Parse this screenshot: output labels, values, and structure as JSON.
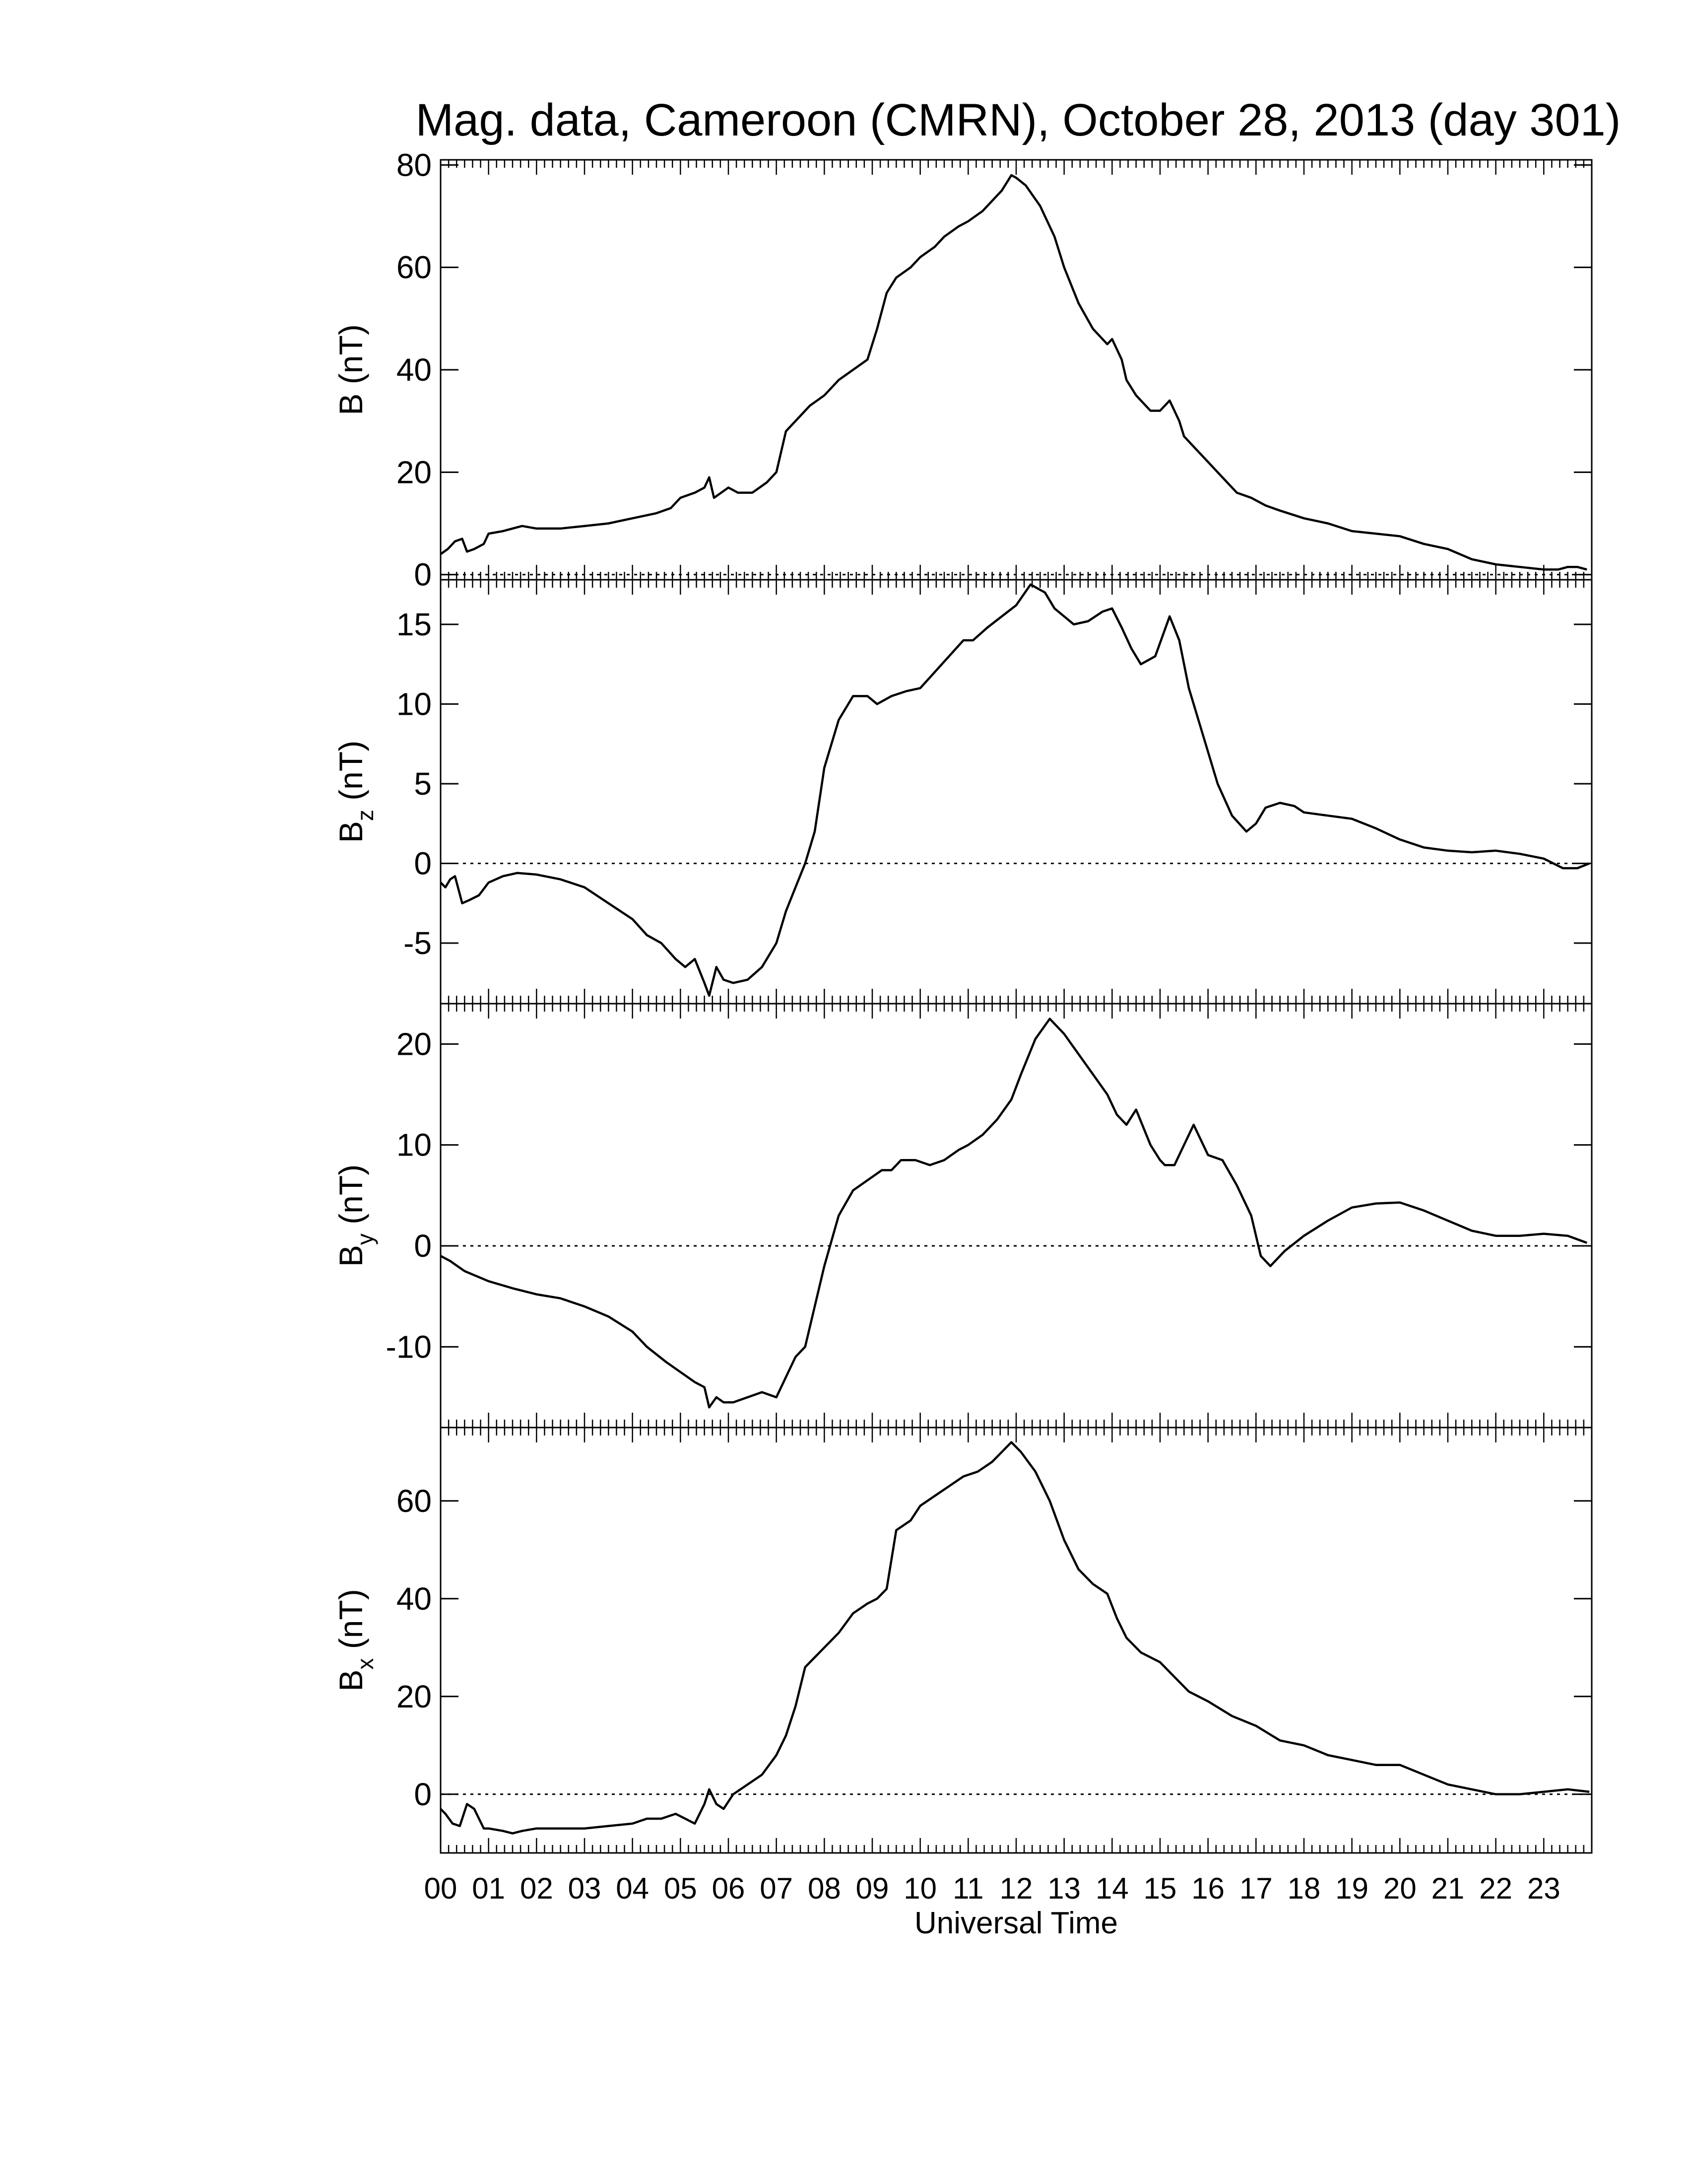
{
  "title": "Mag. data, Cameroon (CMRN), October 28, 2013 (day 301)",
  "xlabel": "Universal Time",
  "x_tick_labels": [
    "00",
    "01",
    "02",
    "03",
    "04",
    "05",
    "06",
    "07",
    "08",
    "09",
    "10",
    "11",
    "12",
    "13",
    "14",
    "15",
    "16",
    "17",
    "18",
    "19",
    "20",
    "21",
    "22",
    "23"
  ],
  "chart_data": [
    {
      "type": "line",
      "panel": "B",
      "ylabel": "B (nT)",
      "ylabel_main": "B",
      "ylabel_sub": "",
      "ylabel_unit": " (nT)",
      "ylim": [
        -1,
        81
      ],
      "yticks": [
        0,
        20,
        40,
        60,
        80
      ],
      "xlim": [
        0,
        24
      ],
      "zero_line": true,
      "series": [
        {
          "x": [
            0,
            0.15,
            0.3,
            0.45,
            0.55,
            0.7,
            0.9,
            1.0,
            1.3,
            1.5,
            1.7,
            2.0,
            2.5,
            3.0,
            3.5,
            4.0,
            4.5,
            4.8,
            5.0,
            5.3,
            5.5,
            5.6,
            5.7,
            6.0,
            6.2,
            6.5,
            6.8,
            7.0,
            7.2,
            7.4,
            7.7,
            8.0,
            8.3,
            8.6,
            8.9,
            9.1,
            9.3,
            9.5,
            9.8,
            10.0,
            10.3,
            10.5,
            10.8,
            11.0,
            11.3,
            11.5,
            11.7,
            11.9,
            12.0,
            12.2,
            12.5,
            12.8,
            13.0,
            13.3,
            13.6,
            13.9,
            14.0,
            14.2,
            14.3,
            14.5,
            14.8,
            15.0,
            15.2,
            15.4,
            15.5,
            15.7,
            16.0,
            16.3,
            16.6,
            16.9,
            17.2,
            17.5,
            18.0,
            18.5,
            19.0,
            19.5,
            20.0,
            20.5,
            21.0,
            21.5,
            22.0,
            22.5,
            23.0,
            23.3,
            23.5,
            23.7,
            23.9
          ],
          "y": [
            4,
            5,
            6.5,
            7,
            4.5,
            5,
            6,
            8,
            8.5,
            9,
            9.5,
            9,
            9,
            9.5,
            10,
            11,
            12,
            13,
            15,
            16,
            17,
            19,
            15,
            17,
            16,
            16,
            18,
            20,
            28,
            30,
            33,
            35,
            38,
            40,
            42,
            48,
            55,
            58,
            60,
            62,
            64,
            66,
            68,
            69,
            71,
            73,
            75,
            78,
            77.5,
            76,
            72,
            66,
            60,
            53,
            48,
            45,
            46,
            42,
            38,
            35,
            32,
            32,
            34,
            30,
            27,
            25,
            22,
            19,
            16,
            15,
            13.5,
            12.5,
            11,
            10,
            8.5,
            8,
            7.5,
            6,
            5,
            3,
            2,
            1.5,
            1,
            1,
            1.5,
            1.5,
            1
          ]
        }
      ]
    },
    {
      "type": "line",
      "panel": "Bz",
      "ylabel": "Bz (nT)",
      "ylabel_main": "B",
      "ylabel_sub": "z",
      "ylabel_unit": " (nT)",
      "ylim": [
        -8.8,
        17.8
      ],
      "yticks": [
        -5,
        0,
        5,
        10,
        15
      ],
      "xlim": [
        0,
        24
      ],
      "zero_line": true,
      "series": [
        {
          "x": [
            0,
            0.1,
            0.2,
            0.3,
            0.45,
            0.6,
            0.8,
            1.0,
            1.3,
            1.6,
            2.0,
            2.5,
            3.0,
            3.5,
            4.0,
            4.3,
            4.6,
            4.9,
            5.1,
            5.3,
            5.5,
            5.6,
            5.75,
            5.9,
            6.1,
            6.4,
            6.7,
            7.0,
            7.2,
            7.4,
            7.6,
            7.8,
            8.0,
            8.3,
            8.6,
            8.9,
            9.1,
            9.4,
            9.7,
            10.0,
            10.3,
            10.6,
            10.9,
            11.1,
            11.4,
            11.7,
            12.0,
            12.3,
            12.6,
            12.8,
            13.0,
            13.2,
            13.5,
            13.8,
            14.0,
            14.2,
            14.4,
            14.6,
            14.9,
            15.2,
            15.4,
            15.6,
            15.9,
            16.2,
            16.5,
            16.8,
            17.0,
            17.2,
            17.5,
            17.8,
            18.0,
            18.5,
            19.0,
            19.5,
            20.0,
            20.5,
            21.0,
            21.5,
            22.0,
            22.5,
            23.0,
            23.4,
            23.7,
            23.95
          ],
          "y": [
            -1.2,
            -1.5,
            -1.0,
            -0.8,
            -2.5,
            -2.3,
            -2.0,
            -1.2,
            -0.8,
            -0.6,
            -0.7,
            -1.0,
            -1.5,
            -2.5,
            -3.5,
            -4.5,
            -5.0,
            -6.0,
            -6.5,
            -6.0,
            -7.5,
            -8.3,
            -6.5,
            -7.3,
            -7.5,
            -7.3,
            -6.5,
            -5.0,
            -3.0,
            -1.5,
            0,
            2,
            6,
            9,
            10.5,
            10.5,
            10,
            10.5,
            10.8,
            11,
            12,
            13,
            14,
            14,
            14.8,
            15.5,
            16.2,
            17.5,
            17,
            16,
            15.5,
            15,
            15.2,
            15.8,
            16,
            14.8,
            13.5,
            12.5,
            13,
            15.5,
            14,
            11,
            8,
            5,
            3,
            2,
            2.5,
            3.5,
            3.8,
            3.6,
            3.2,
            3.0,
            2.8,
            2.2,
            1.5,
            1.0,
            0.8,
            0.7,
            0.8,
            0.6,
            0.3,
            -0.3,
            -0.3,
            0
          ]
        }
      ]
    },
    {
      "type": "line",
      "panel": "By",
      "ylabel": "By (nT)",
      "ylabel_main": "B",
      "ylabel_sub": "y",
      "ylabel_unit": " (nT)",
      "ylim": [
        -18,
        24
      ],
      "yticks": [
        -10,
        0,
        10,
        20
      ],
      "xlim": [
        0,
        24
      ],
      "zero_line": true,
      "series": [
        {
          "x": [
            0,
            0.2,
            0.5,
            1.0,
            1.5,
            2.0,
            2.5,
            3.0,
            3.5,
            4.0,
            4.3,
            4.7,
            5.0,
            5.3,
            5.5,
            5.6,
            5.75,
            5.9,
            6.1,
            6.4,
            6.7,
            7.0,
            7.2,
            7.4,
            7.6,
            7.8,
            8.0,
            8.3,
            8.6,
            8.9,
            9.2,
            9.4,
            9.6,
            9.9,
            10.2,
            10.5,
            10.8,
            11.0,
            11.3,
            11.6,
            11.9,
            12.1,
            12.4,
            12.7,
            13.0,
            13.3,
            13.6,
            13.9,
            14.1,
            14.3,
            14.5,
            14.8,
            15.0,
            15.1,
            15.3,
            15.5,
            15.7,
            16.0,
            16.3,
            16.6,
            16.9,
            17.1,
            17.3,
            17.6,
            18.0,
            18.5,
            19.0,
            19.5,
            20.0,
            20.5,
            21.0,
            21.5,
            22.0,
            22.5,
            23.0,
            23.5,
            23.9
          ],
          "y": [
            -1,
            -1.5,
            -2.5,
            -3.5,
            -4.2,
            -4.8,
            -5.2,
            -6,
            -7,
            -8.5,
            -10,
            -11.5,
            -12.5,
            -13.5,
            -14,
            -16,
            -15,
            -15.5,
            -15.5,
            -15,
            -14.5,
            -15,
            -13,
            -11,
            -10,
            -6,
            -2,
            3,
            5.5,
            6.5,
            7.5,
            7.5,
            8.5,
            8.5,
            8,
            8.5,
            9.5,
            10,
            11,
            12.5,
            14.5,
            17,
            20.5,
            22.5,
            21,
            19,
            17,
            15,
            13,
            12,
            13.5,
            10,
            8.5,
            8,
            8,
            10,
            12,
            9,
            8.5,
            6,
            3,
            -1,
            -2,
            -0.5,
            1,
            2.5,
            3.8,
            4.2,
            4.3,
            3.5,
            2.5,
            1.5,
            1.0,
            1.0,
            1.2,
            1.0,
            0.3
          ]
        }
      ]
    },
    {
      "type": "line",
      "panel": "Bx",
      "ylabel": "Bx (nT)",
      "ylabel_main": "B",
      "ylabel_sub": "x",
      "ylabel_unit": " (nT)",
      "ylim": [
        -12,
        75
      ],
      "yticks": [
        0,
        20,
        40,
        60
      ],
      "xlim": [
        0,
        24
      ],
      "zero_line": true,
      "series": [
        {
          "x": [
            0,
            0.1,
            0.25,
            0.4,
            0.55,
            0.7,
            0.9,
            1.0,
            1.3,
            1.5,
            1.7,
            2.0,
            2.5,
            3.0,
            3.5,
            4.0,
            4.3,
            4.6,
            4.9,
            5.1,
            5.3,
            5.5,
            5.6,
            5.75,
            5.9,
            6.1,
            6.4,
            6.7,
            7.0,
            7.2,
            7.4,
            7.6,
            7.8,
            8.0,
            8.3,
            8.6,
            8.9,
            9.1,
            9.3,
            9.5,
            9.8,
            10.0,
            10.3,
            10.6,
            10.9,
            11.2,
            11.5,
            11.7,
            11.9,
            12.1,
            12.4,
            12.7,
            13.0,
            13.3,
            13.6,
            13.9,
            14.1,
            14.3,
            14.6,
            15.0,
            15.3,
            15.6,
            16.0,
            16.5,
            17.0,
            17.5,
            18.0,
            18.5,
            19.0,
            19.5,
            20.0,
            20.5,
            21.0,
            21.5,
            22.0,
            22.5,
            23.0,
            23.5,
            23.95
          ],
          "y": [
            -3,
            -4,
            -6,
            -6.5,
            -2,
            -3,
            -7,
            -7,
            -7.5,
            -8,
            -7.5,
            -7,
            -7,
            -7,
            -6.5,
            -6,
            -5,
            -5,
            -4,
            -5,
            -6,
            -2,
            1,
            -2,
            -3,
            0,
            2,
            4,
            8,
            12,
            18,
            26,
            28,
            30,
            33,
            37,
            39,
            40,
            42,
            54,
            56,
            59,
            61,
            63,
            65,
            66,
            68,
            70,
            72,
            70,
            66,
            60,
            52,
            46,
            43,
            41,
            36,
            32,
            29,
            27,
            24,
            21,
            19,
            16,
            14,
            11,
            10,
            8,
            7,
            6,
            6,
            4,
            2,
            1,
            0,
            0,
            0.5,
            1,
            0.5
          ]
        }
      ]
    }
  ]
}
